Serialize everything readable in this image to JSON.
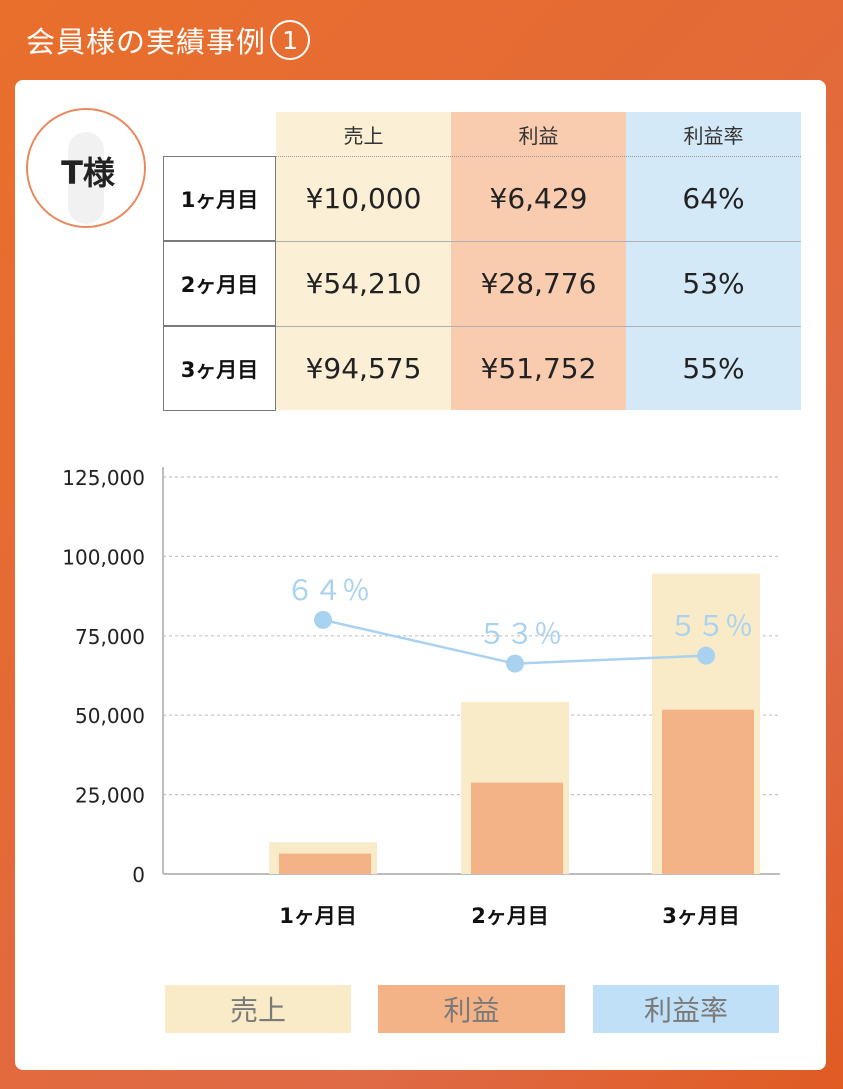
{
  "header": {
    "title": "会員様の実績事例",
    "number": "1"
  },
  "member": {
    "name": "T様"
  },
  "table": {
    "columns": [
      "売上",
      "利益",
      "利益率"
    ],
    "rows": [
      {
        "label": "1ヶ月目",
        "sales": "¥10,000",
        "profit": "¥6,429",
        "rate": "64%"
      },
      {
        "label": "2ヶ月目",
        "sales": "¥54,210",
        "profit": "¥28,776",
        "rate": "53%"
      },
      {
        "label": "3ヶ月目",
        "sales": "¥94,575",
        "profit": "¥51,752",
        "rate": "55%"
      }
    ]
  },
  "colors": {
    "sales": "#f9ebc8",
    "profit": "#f4b386",
    "rate": "#c7e3f6",
    "rate_line": "#a9d2f0",
    "sales_col": "#fbf0d6",
    "profit_col": "#f9ccb0",
    "rate_col": "#d4e9f8"
  },
  "chart_data": {
    "type": "bar",
    "categories": [
      "1ヶ月目",
      "2ヶ月目",
      "3ヶ月目"
    ],
    "series": [
      {
        "name": "売上",
        "values": [
          10000,
          54210,
          94575
        ]
      },
      {
        "name": "利益",
        "values": [
          6429,
          28776,
          51752
        ]
      },
      {
        "name": "利益率",
        "type": "line",
        "values": [
          64,
          53,
          55
        ],
        "labels": [
          "６４％",
          "５３％",
          "５５％"
        ]
      }
    ],
    "yticks": [
      "125,000",
      "100,000",
      "75,000",
      "50,000",
      "25,000",
      "0"
    ],
    "ylim": [
      0,
      125000
    ],
    "grid": true,
    "legend": "bottom"
  },
  "legend": [
    "売上",
    "利益",
    "利益率"
  ]
}
